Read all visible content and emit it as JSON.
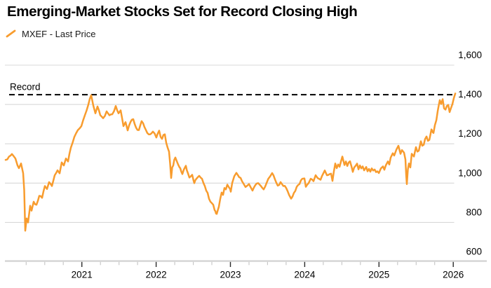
{
  "header": {
    "title": "Emerging-Market Stocks Set for Record Closing High"
  },
  "legend": {
    "series_label": "MXEF - Last Price"
  },
  "chart_data": {
    "type": "line",
    "title": "Emerging-Market Stocks Set for Record Closing High",
    "xlabel": "",
    "ylabel": "",
    "xlim": [
      2019.97,
      2026.45
    ],
    "ylim": [
      600,
      1600
    ],
    "y_ticks": [
      600,
      800,
      1000,
      1200,
      1400,
      1600
    ],
    "x_ticks": [
      2021,
      2022,
      2023,
      2024,
      2025,
      2026
    ],
    "x_minor_tick_step": 0.25,
    "grid": "horizontal",
    "legend_position": "top-left",
    "record_line": {
      "label": "Record",
      "value": 1450,
      "style": "dashed"
    },
    "colors": {
      "line": "#F89C2E",
      "grid": "#D8D8D8",
      "axis_band": "#D2D2D2",
      "tick_major": "#2B2B2B",
      "tick_minor": "#C4C4C4",
      "record": "#000000",
      "text": "#000000"
    },
    "series": [
      {
        "name": "MXEF - Last Price",
        "color": "#F89C2E",
        "points": [
          [
            2019.974,
            1118
          ],
          [
            2020.02,
            1135
          ],
          [
            2020.059,
            1148
          ],
          [
            2020.106,
            1125
          ],
          [
            2020.134,
            1090
          ],
          [
            2020.153,
            1076
          ],
          [
            2020.181,
            1100
          ],
          [
            2020.21,
            1050
          ],
          [
            2020.224,
            965
          ],
          [
            2020.238,
            758
          ],
          [
            2020.257,
            820
          ],
          [
            2020.276,
            800
          ],
          [
            2020.304,
            885
          ],
          [
            2020.323,
            860
          ],
          [
            2020.351,
            905
          ],
          [
            2020.389,
            890
          ],
          [
            2020.427,
            935
          ],
          [
            2020.465,
            925
          ],
          [
            2020.502,
            985
          ],
          [
            2020.531,
            970
          ],
          [
            2020.559,
            1005
          ],
          [
            2020.597,
            985
          ],
          [
            2020.635,
            1040
          ],
          [
            2020.672,
            1065
          ],
          [
            2020.701,
            1050
          ],
          [
            2020.729,
            1105
          ],
          [
            2020.757,
            1090
          ],
          [
            2020.786,
            1125
          ],
          [
            2020.814,
            1110
          ],
          [
            2020.852,
            1180
          ],
          [
            2020.899,
            1235
          ],
          [
            2020.946,
            1270
          ],
          [
            2020.993,
            1290
          ],
          [
            2021.041,
            1345
          ],
          [
            2021.088,
            1400
          ],
          [
            2021.126,
            1447
          ],
          [
            2021.154,
            1395
          ],
          [
            2021.182,
            1355
          ],
          [
            2021.211,
            1390
          ],
          [
            2021.248,
            1345
          ],
          [
            2021.286,
            1330
          ],
          [
            2021.333,
            1365
          ],
          [
            2021.371,
            1345
          ],
          [
            2021.409,
            1350
          ],
          [
            2021.456,
            1392
          ],
          [
            2021.494,
            1355
          ],
          [
            2021.522,
            1370
          ],
          [
            2021.56,
            1290
          ],
          [
            2021.588,
            1310
          ],
          [
            2021.617,
            1268
          ],
          [
            2021.654,
            1310
          ],
          [
            2021.692,
            1325
          ],
          [
            2021.73,
            1282
          ],
          [
            2021.768,
            1270
          ],
          [
            2021.805,
            1315
          ],
          [
            2021.843,
            1285
          ],
          [
            2021.881,
            1255
          ],
          [
            2021.919,
            1248
          ],
          [
            2021.957,
            1262
          ],
          [
            2022.003,
            1232
          ],
          [
            2022.022,
            1252
          ],
          [
            2022.041,
            1267
          ],
          [
            2022.06,
            1235
          ],
          [
            2022.079,
            1225
          ],
          [
            2022.098,
            1245
          ],
          [
            2022.117,
            1248
          ],
          [
            2022.136,
            1205
          ],
          [
            2022.155,
            1180
          ],
          [
            2022.174,
            1160
          ],
          [
            2022.188,
            1100
          ],
          [
            2022.202,
            1026
          ],
          [
            2022.216,
            1080
          ],
          [
            2022.23,
            1090
          ],
          [
            2022.244,
            1118
          ],
          [
            2022.259,
            1130
          ],
          [
            2022.278,
            1112
          ],
          [
            2022.296,
            1095
          ],
          [
            2022.315,
            1080
          ],
          [
            2022.325,
            1076
          ],
          [
            2022.339,
            1058
          ],
          [
            2022.353,
            1046
          ],
          [
            2022.372,
            1068
          ],
          [
            2022.391,
            1082
          ],
          [
            2022.4,
            1088
          ],
          [
            2022.414,
            1065
          ],
          [
            2022.429,
            1050
          ],
          [
            2022.448,
            1028
          ],
          [
            2022.467,
            1035
          ],
          [
            2022.485,
            1042
          ],
          [
            2022.504,
            1012
          ],
          [
            2022.514,
            1000
          ],
          [
            2022.528,
            1015
          ],
          [
            2022.542,
            1022
          ],
          [
            2022.561,
            1030
          ],
          [
            2022.58,
            1037
          ],
          [
            2022.599,
            1028
          ],
          [
            2022.618,
            1022
          ],
          [
            2022.637,
            1000
          ],
          [
            2022.655,
            985
          ],
          [
            2022.674,
            962
          ],
          [
            2022.693,
            950
          ],
          [
            2022.712,
            920
          ],
          [
            2022.731,
            905
          ],
          [
            2022.75,
            898
          ],
          [
            2022.769,
            890
          ],
          [
            2022.788,
            862
          ],
          [
            2022.797,
            858
          ],
          [
            2022.806,
            845
          ],
          [
            2022.816,
            843
          ],
          [
            2022.83,
            862
          ],
          [
            2022.844,
            880
          ],
          [
            2022.863,
            920
          ],
          [
            2022.882,
            952
          ],
          [
            2022.901,
            940
          ],
          [
            2022.92,
            975
          ],
          [
            2022.939,
            968
          ],
          [
            2022.958,
            992
          ],
          [
            2022.977,
            980
          ],
          [
            2022.995,
            970
          ],
          [
            2023.005,
            956
          ],
          [
            2023.024,
            1000
          ],
          [
            2023.052,
            1035
          ],
          [
            2023.08,
            1052
          ],
          [
            2023.118,
            1030
          ],
          [
            2023.156,
            1010
          ],
          [
            2023.203,
            980
          ],
          [
            2023.25,
            995
          ],
          [
            2023.297,
            962
          ],
          [
            2023.335,
            990
          ],
          [
            2023.373,
            1000
          ],
          [
            2023.411,
            985
          ],
          [
            2023.448,
            968
          ],
          [
            2023.486,
            1000
          ],
          [
            2023.533,
            1033
          ],
          [
            2023.562,
            1051
          ],
          [
            2023.599,
            1020
          ],
          [
            2023.637,
            987
          ],
          [
            2023.675,
            1005
          ],
          [
            2023.713,
            985
          ],
          [
            2023.751,
            975
          ],
          [
            2023.789,
            940
          ],
          [
            2023.817,
            921
          ],
          [
            2023.855,
            950
          ],
          [
            2023.892,
            981
          ],
          [
            2023.93,
            995
          ],
          [
            2023.968,
            1022
          ],
          [
            2023.996,
            1024
          ],
          [
            2024.015,
            981
          ],
          [
            2024.053,
            1000
          ],
          [
            2024.081,
            1022
          ],
          [
            2024.119,
            1010
          ],
          [
            2024.147,
            1040
          ],
          [
            2024.176,
            1025
          ],
          [
            2024.213,
            1017
          ],
          [
            2024.251,
            1050
          ],
          [
            2024.27,
            1064
          ],
          [
            2024.299,
            1040
          ],
          [
            2024.336,
            1046
          ],
          [
            2024.355,
            1048
          ],
          [
            2024.374,
            1011
          ],
          [
            2024.393,
            1060
          ],
          [
            2024.412,
            1100
          ],
          [
            2024.431,
            1076
          ],
          [
            2024.45,
            1095
          ],
          [
            2024.469,
            1083
          ],
          [
            2024.488,
            1110
          ],
          [
            2024.507,
            1135
          ],
          [
            2024.535,
            1092
          ],
          [
            2024.554,
            1110
          ],
          [
            2024.573,
            1087
          ],
          [
            2024.592,
            1105
          ],
          [
            2024.61,
            1111
          ],
          [
            2024.63,
            1085
          ],
          [
            2024.648,
            1057
          ],
          [
            2024.667,
            1080
          ],
          [
            2024.686,
            1088
          ],
          [
            2024.705,
            1099
          ],
          [
            2024.724,
            1070
          ],
          [
            2024.743,
            1090
          ],
          [
            2024.762,
            1075
          ],
          [
            2024.781,
            1085
          ],
          [
            2024.8,
            1065
          ],
          [
            2024.828,
            1082
          ],
          [
            2024.846,
            1060
          ],
          [
            2024.865,
            1072
          ],
          [
            2024.884,
            1058
          ],
          [
            2024.903,
            1075
          ],
          [
            2024.922,
            1064
          ],
          [
            2024.941,
            1069
          ],
          [
            2024.96,
            1056
          ],
          [
            2024.979,
            1060
          ],
          [
            2024.998,
            1051
          ],
          [
            2025.026,
            1075
          ],
          [
            2025.054,
            1085
          ],
          [
            2025.073,
            1068
          ],
          [
            2025.092,
            1090
          ],
          [
            2025.12,
            1110
          ],
          [
            2025.139,
            1095
          ],
          [
            2025.158,
            1130
          ],
          [
            2025.186,
            1152
          ],
          [
            2025.205,
            1140
          ],
          [
            2025.234,
            1170
          ],
          [
            2025.262,
            1190
          ],
          [
            2025.29,
            1149
          ],
          [
            2025.309,
            1168
          ],
          [
            2025.337,
            1155
          ],
          [
            2025.356,
            1120
          ],
          [
            2025.366,
            1040
          ],
          [
            2025.375,
            995
          ],
          [
            2025.389,
            1070
          ],
          [
            2025.403,
            1100
          ],
          [
            2025.422,
            1080
          ],
          [
            2025.441,
            1149
          ],
          [
            2025.46,
            1140
          ],
          [
            2025.47,
            1135
          ],
          [
            2025.498,
            1183
          ],
          [
            2025.517,
            1160
          ],
          [
            2025.536,
            1165
          ],
          [
            2025.564,
            1213
          ],
          [
            2025.583,
            1190
          ],
          [
            2025.602,
            1195
          ],
          [
            2025.621,
            1225
          ],
          [
            2025.64,
            1237
          ],
          [
            2025.659,
            1215
          ],
          [
            2025.678,
            1220
          ],
          [
            2025.706,
            1273
          ],
          [
            2025.725,
            1258
          ],
          [
            2025.734,
            1255
          ],
          [
            2025.753,
            1295
          ],
          [
            2025.772,
            1320
          ],
          [
            2025.791,
            1368
          ],
          [
            2025.805,
            1395
          ],
          [
            2025.819,
            1422
          ],
          [
            2025.838,
            1402
          ],
          [
            2025.857,
            1427
          ],
          [
            2025.876,
            1380
          ],
          [
            2025.895,
            1374
          ],
          [
            2025.913,
            1392
          ],
          [
            2025.932,
            1398
          ],
          [
            2025.951,
            1361
          ],
          [
            2025.97,
            1382
          ],
          [
            2025.989,
            1402
          ],
          [
            2026.008,
            1432
          ],
          [
            2026.027,
            1456
          ]
        ]
      }
    ]
  }
}
